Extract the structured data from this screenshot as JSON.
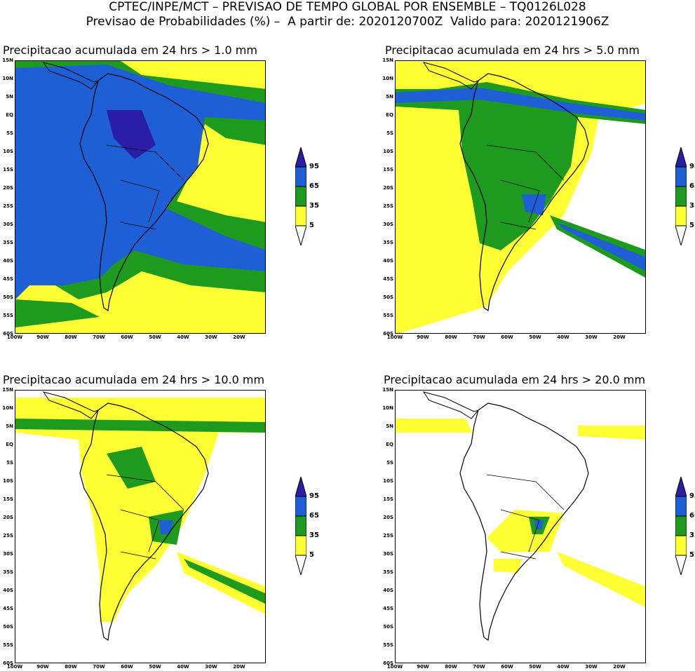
{
  "header": {
    "line1": "CPTEC/INPE/MCT – PREVISAO DE TEMPO GLOBAL POR ENSEMBLE – TQ0126L028",
    "line2": "Previsao de Probabilidades (%) –  A partir de: 2020120700Z  Valido para: 2020121906Z"
  },
  "panels": [
    {
      "title": "Precipitacao acumulada em 24 hrs > 1.0 mm"
    },
    {
      "title": "Precipitacao acumulada em 24 hrs > 5.0 mm"
    },
    {
      "title": "Precipitacao acumulada em 24 hrs > 10.0 mm"
    },
    {
      "title": "Precipitacao acumulada em 24 hrs > 20.0 mm"
    }
  ],
  "axes": {
    "lat_labels": [
      "15N",
      "10N",
      "5N",
      "EQ",
      "5S",
      "10S",
      "15S",
      "20S",
      "25S",
      "30S",
      "35S",
      "40S",
      "45S",
      "50S",
      "55S",
      "60S"
    ],
    "lon_labels": [
      "100W",
      "90W",
      "80W",
      "70W",
      "60W",
      "50W",
      "40W",
      "30W",
      "20W"
    ]
  },
  "colorbar": {
    "labels": [
      "95",
      "65",
      "35",
      "5"
    ],
    "colors": {
      "yellow": "#ffff33",
      "green": "#1e9a1e",
      "blue": "#1f5fd6",
      "dark": "#2b1ea6",
      "white": "#ffffff"
    }
  }
}
